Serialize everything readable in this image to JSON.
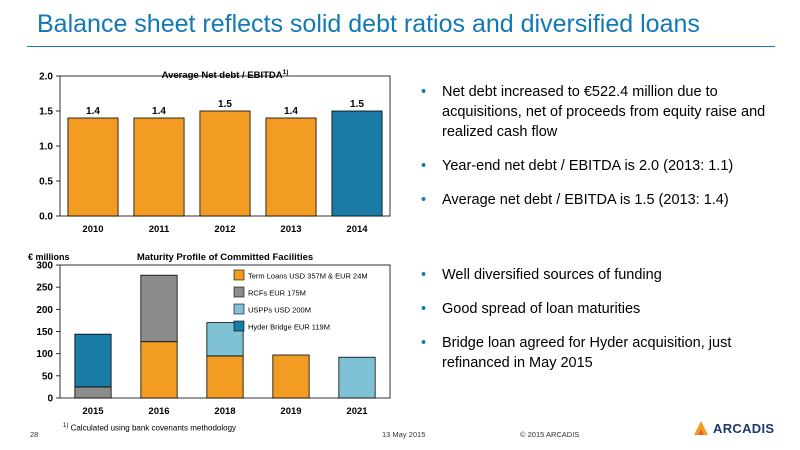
{
  "header": {
    "title": "Balance sheet reflects solid debt ratios and diversified loans"
  },
  "colors": {
    "accent": "#1179b4",
    "orange": "#f39c23",
    "gray": "#8c8c8c",
    "lightblue": "#7fc2d6",
    "darkblue": "#1a7ca6"
  },
  "chart_data": [
    {
      "type": "bar",
      "title": "Average Net debt / EBITDA",
      "title_sup": "1)",
      "categories": [
        "2010",
        "2011",
        "2012",
        "2013",
        "2014"
      ],
      "values": [
        1.4,
        1.4,
        1.5,
        1.4,
        1.5
      ],
      "value_labels": [
        "1.4",
        "1.4",
        "1.5",
        "1.4",
        "1.5"
      ],
      "bar_colors": [
        "#f39c23",
        "#f39c23",
        "#f39c23",
        "#f39c23",
        "#1a7ca6"
      ],
      "ylim": [
        0,
        2.0
      ],
      "yticks": [
        "0.0",
        "0.5",
        "1.0",
        "1.5",
        "2.0"
      ],
      "grid": false
    },
    {
      "type": "bar",
      "stacked": true,
      "title": "Maturity Profile of Committed Facilities",
      "ylabel": "€ millions",
      "categories": [
        "2015",
        "2016",
        "2018",
        "2019",
        "2021"
      ],
      "series": [
        {
          "name": "Term Loans USD 357M & EUR 24M",
          "color": "#f39c23",
          "values": [
            0,
            127,
            95,
            97,
            0
          ]
        },
        {
          "name": "RCFs EUR 175M",
          "color": "#8c8c8c",
          "values": [
            25,
            150,
            0,
            0,
            0
          ]
        },
        {
          "name": "USPPs USD 200M",
          "color": "#7fc2d6",
          "values": [
            0,
            0,
            75,
            0,
            92
          ]
        },
        {
          "name": "Hyder Bridge EUR 119M",
          "color": "#1a7ca6",
          "values": [
            119,
            0,
            0,
            0,
            0
          ]
        }
      ],
      "ylim": [
        0,
        300
      ],
      "yticks": [
        "0",
        "50",
        "100",
        "150",
        "200",
        "250",
        "300"
      ],
      "legend": "top-right",
      "grid": false
    }
  ],
  "bullets_top": [
    "Net debt increased to €522.4 million due to acquisitions, net of proceeds from equity raise and realized cash flow",
    "Year-end net debt / EBITDA is 2.0 (2013: 1.1)",
    "Average net debt / EBITDA is 1.5 (2013: 1.4)"
  ],
  "bullets_bottom": [
    "Well diversified sources of funding",
    "Good spread of loan maturities",
    "Bridge loan agreed for Hyder acquisition, just refinanced in May 2015"
  ],
  "bullet_symbol": "•",
  "footnote": {
    "marker": "1)",
    "text": "Calculated using bank covenants methodology"
  },
  "footer": {
    "page_number": "28",
    "date": "13 May 2015",
    "copyright": "© 2015 ARCADIS"
  },
  "logo": {
    "text": "ARCADIS",
    "icon": "arcadis-logo-icon"
  }
}
